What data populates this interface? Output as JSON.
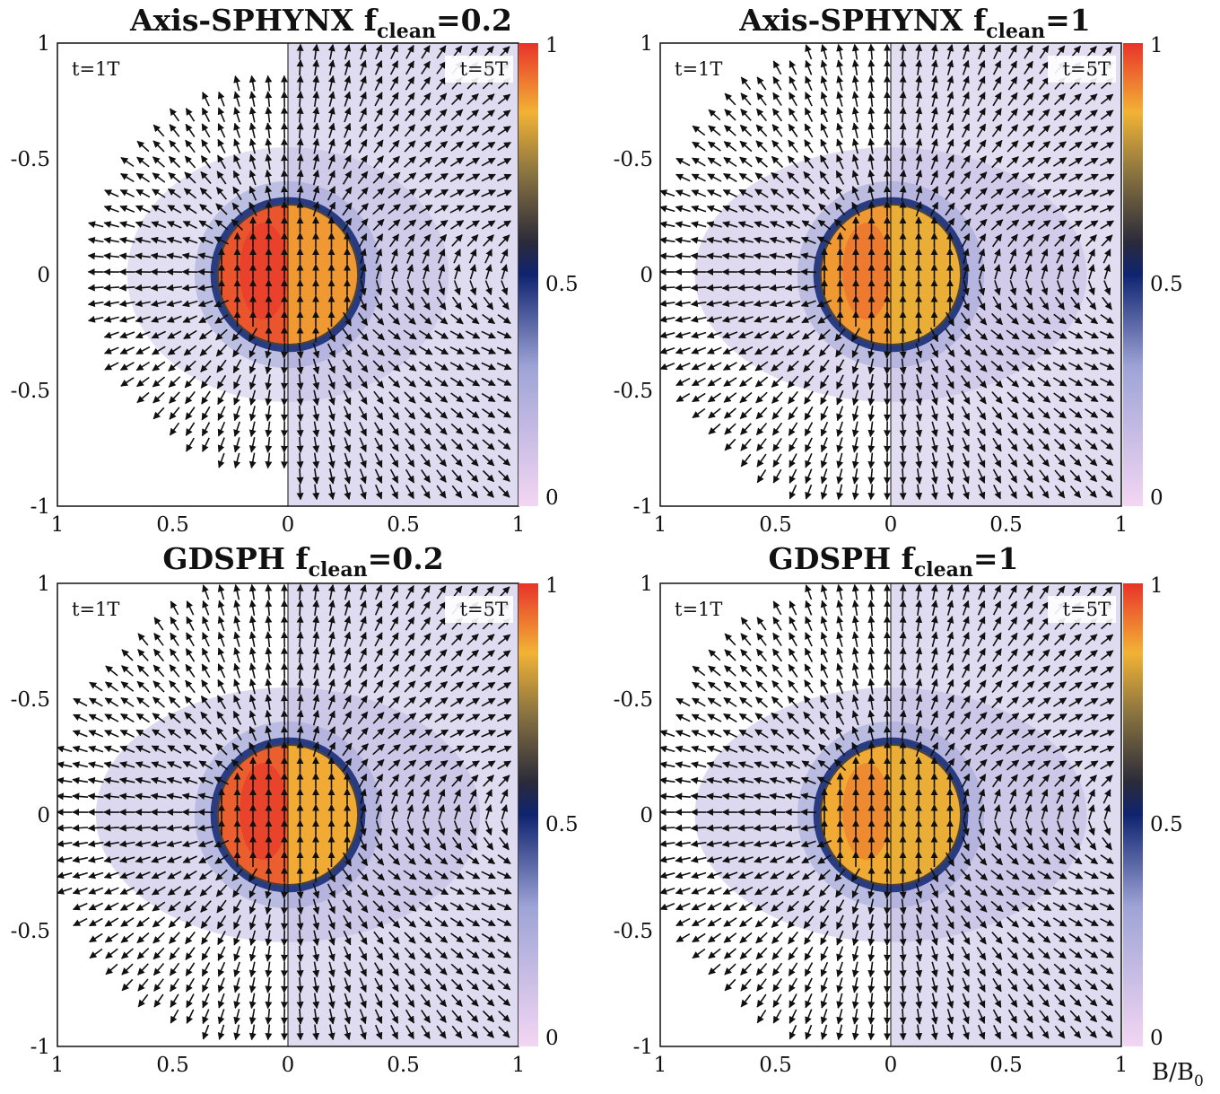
{
  "figure": {
    "colorbar_label_main": "B/B",
    "colorbar_label_sub": "0"
  },
  "chart_data": [
    {
      "type": "heatmap",
      "id": "p0",
      "title_main": "Axis-SPHYNX f",
      "title_sub": "clean",
      "title_value": "=0.2",
      "method": "Axis-SPHYNX",
      "f_clean": 0.2,
      "left_label": "t=1T",
      "right_label": "t=5T",
      "x_ticks": [
        "1",
        "0.5",
        "0",
        "0.5",
        "1"
      ],
      "y_ticks": [
        "1",
        "-0.5",
        "0",
        "-0.5",
        "-1"
      ],
      "xlim": [
        -1,
        1
      ],
      "ylim": [
        -1,
        1
      ],
      "colorbar_ticks": [
        "1",
        "0.5",
        "0"
      ],
      "colorbar_range": [
        0,
        1
      ],
      "colormap": [
        "#f3d6f3",
        "#9ea4d6",
        "#0f2470",
        "#2a2a3a",
        "#8a7440",
        "#f2b335",
        "#e8332a"
      ],
      "bubble_radius": 0.3,
      "bubble_value_left": 0.96,
      "bubble_value_right": 0.88,
      "field_extent_left": 0.82,
      "field_extent_right": 1.0,
      "halo_level": 0.18
    },
    {
      "type": "heatmap",
      "id": "p1",
      "title_main": "Axis-SPHYNX f",
      "title_sub": "clean",
      "title_value": "=1",
      "method": "Axis-SPHYNX",
      "f_clean": 1,
      "left_label": "t=1T",
      "right_label": "t=5T",
      "x_ticks": [
        "1",
        "0.5",
        "0",
        "0.5",
        "1"
      ],
      "y_ticks": [
        "1",
        "-0.5",
        "0",
        "-0.5",
        "-1"
      ],
      "xlim": [
        -1,
        1
      ],
      "ylim": [
        -1,
        1
      ],
      "colorbar_ticks": [
        "1",
        "0.5",
        "0"
      ],
      "colorbar_range": [
        0,
        1
      ],
      "colormap": [
        "#f3d6f3",
        "#9ea4d6",
        "#0f2470",
        "#2a2a3a",
        "#8a7440",
        "#f2b335",
        "#e8332a"
      ],
      "bubble_radius": 0.3,
      "bubble_value_left": 0.88,
      "bubble_value_right": 0.84,
      "field_extent_left": 1.0,
      "field_extent_right": 1.0,
      "halo_level": 0.16
    },
    {
      "type": "heatmap",
      "id": "p2",
      "title_main": "GDSPH f",
      "title_sub": "clean",
      "title_value": "=0.2",
      "method": "GDSPH",
      "f_clean": 0.2,
      "left_label": "t=1T",
      "right_label": "t=5T",
      "x_ticks": [
        "1",
        "0.5",
        "0",
        "0.5",
        "1"
      ],
      "y_ticks": [
        "1",
        "-0.5",
        "0",
        "-0.5",
        "-1"
      ],
      "xlim": [
        -1,
        1
      ],
      "ylim": [
        -1,
        1
      ],
      "colorbar_ticks": [
        "1",
        "0.5",
        "0"
      ],
      "colorbar_range": [
        0,
        1
      ],
      "colormap": [
        "#f3d6f3",
        "#9ea4d6",
        "#0f2470",
        "#2a2a3a",
        "#8a7440",
        "#f2b335",
        "#e8332a"
      ],
      "bubble_radius": 0.3,
      "bubble_value_left": 0.95,
      "bubble_value_right": 0.86,
      "field_extent_left": 0.98,
      "field_extent_right": 1.0,
      "halo_level": 0.18
    },
    {
      "type": "heatmap",
      "id": "p3",
      "title_main": "GDSPH f",
      "title_sub": "clean",
      "title_value": "=1",
      "method": "GDSPH",
      "f_clean": 1,
      "left_label": "t=1T",
      "right_label": "t=5T",
      "x_ticks": [
        "1",
        "0.5",
        "0",
        "0.5",
        "1"
      ],
      "y_ticks": [
        "1",
        "-0.5",
        "0",
        "-0.5",
        "-1"
      ],
      "xlim": [
        -1,
        1
      ],
      "ylim": [
        -1,
        1
      ],
      "colorbar_ticks": [
        "1",
        "0.5",
        "0"
      ],
      "colorbar_range": [
        0,
        1
      ],
      "colormap": [
        "#f3d6f3",
        "#9ea4d6",
        "#0f2470",
        "#2a2a3a",
        "#8a7440",
        "#f2b335",
        "#e8332a"
      ],
      "bubble_radius": 0.3,
      "bubble_value_left": 0.86,
      "bubble_value_right": 0.84,
      "field_extent_left": 1.0,
      "field_extent_right": 1.0,
      "halo_level": 0.18
    }
  ]
}
